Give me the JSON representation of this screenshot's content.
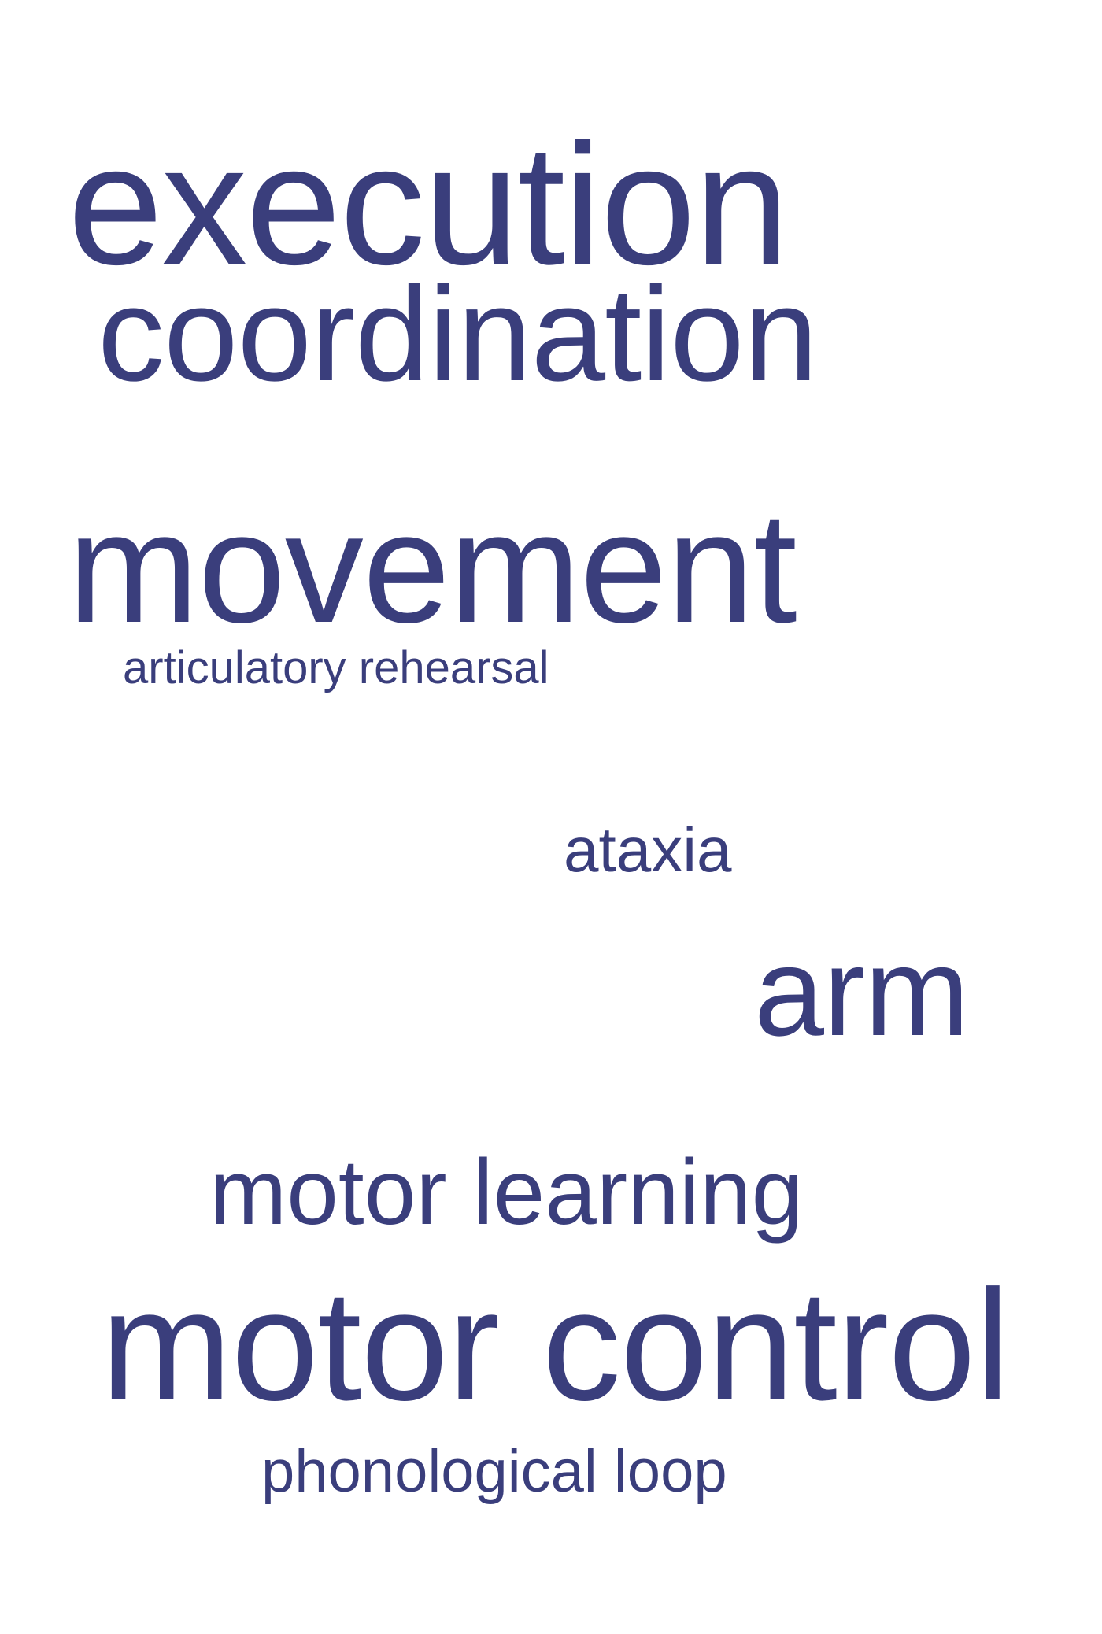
{
  "colors": {
    "background": "#ffffff",
    "text": "#3a3e7c"
  },
  "words": {
    "execution": "execution",
    "coordination": "coordination",
    "movement": "movement",
    "articulatory_rehearsal": "articulatory rehearsal",
    "ataxia": "ataxia",
    "arm": "arm",
    "motor_learning": "motor learning",
    "motor_control": "motor control",
    "phonological_loop": "phonological loop"
  }
}
